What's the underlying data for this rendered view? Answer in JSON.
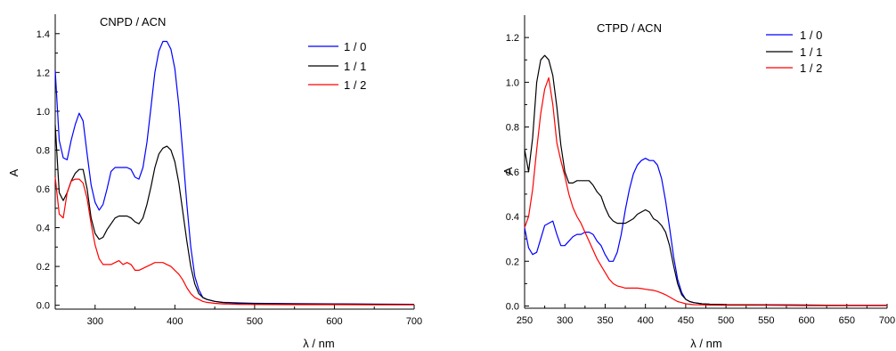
{
  "chart_data": [
    {
      "type": "line",
      "title": "CNPD / ACN",
      "xlabel": "λ / nm",
      "ylabel": "A",
      "xlim": [
        250,
        700
      ],
      "ylim": [
        -0.02,
        1.5
      ],
      "xticks": [
        300,
        400,
        500,
        600,
        700
      ],
      "xtick_labels": [
        "300",
        "400",
        "500",
        "600",
        "700"
      ],
      "yticks": [
        0.0,
        0.2,
        0.4,
        0.6,
        0.8,
        1.0,
        1.2,
        1.4
      ],
      "ytick_labels": [
        "0.0",
        "0.2",
        "0.4",
        "0.6",
        "0.8",
        "1.0",
        "1.2",
        "1.4"
      ],
      "grid": false,
      "legend": "top-right",
      "series": [
        {
          "name": "1 / 0",
          "color": "#0000ff",
          "x": [
            250,
            255,
            260,
            265,
            270,
            275,
            280,
            285,
            290,
            295,
            300,
            305,
            310,
            315,
            320,
            325,
            330,
            335,
            340,
            345,
            350,
            355,
            360,
            365,
            370,
            375,
            380,
            385,
            390,
            395,
            400,
            405,
            410,
            415,
            420,
            425,
            430,
            435,
            440,
            450,
            460,
            480,
            500,
            550,
            600,
            650,
            700
          ],
          "y": [
            1.21,
            0.85,
            0.76,
            0.75,
            0.85,
            0.93,
            0.99,
            0.95,
            0.78,
            0.62,
            0.53,
            0.49,
            0.52,
            0.6,
            0.69,
            0.71,
            0.71,
            0.71,
            0.71,
            0.7,
            0.66,
            0.65,
            0.71,
            0.84,
            1.02,
            1.2,
            1.31,
            1.36,
            1.36,
            1.32,
            1.22,
            1.03,
            0.78,
            0.52,
            0.3,
            0.15,
            0.08,
            0.04,
            0.03,
            0.02,
            0.015,
            0.012,
            0.01,
            0.008,
            0.007,
            0.006,
            0.005
          ]
        },
        {
          "name": "1 / 1",
          "color": "#000000",
          "x": [
            250,
            255,
            260,
            265,
            270,
            275,
            280,
            285,
            290,
            295,
            300,
            305,
            310,
            315,
            320,
            325,
            330,
            335,
            340,
            345,
            350,
            355,
            360,
            365,
            370,
            375,
            380,
            385,
            390,
            395,
            400,
            405,
            410,
            415,
            420,
            425,
            430,
            435,
            440,
            450,
            460,
            480,
            500,
            550,
            600,
            650,
            700
          ],
          "y": [
            0.93,
            0.58,
            0.54,
            0.58,
            0.64,
            0.68,
            0.7,
            0.7,
            0.6,
            0.45,
            0.37,
            0.34,
            0.35,
            0.39,
            0.42,
            0.45,
            0.46,
            0.46,
            0.46,
            0.45,
            0.43,
            0.42,
            0.45,
            0.52,
            0.61,
            0.71,
            0.78,
            0.81,
            0.82,
            0.8,
            0.74,
            0.63,
            0.48,
            0.33,
            0.2,
            0.11,
            0.06,
            0.04,
            0.03,
            0.02,
            0.014,
            0.01,
            0.008,
            0.007,
            0.006,
            0.005,
            0.004
          ]
        },
        {
          "name": "1 / 2",
          "color": "#ff0000",
          "x": [
            250,
            255,
            260,
            265,
            270,
            275,
            280,
            285,
            290,
            295,
            300,
            305,
            310,
            315,
            320,
            325,
            330,
            335,
            340,
            345,
            350,
            355,
            360,
            365,
            370,
            375,
            380,
            385,
            390,
            395,
            400,
            405,
            410,
            415,
            420,
            425,
            430,
            435,
            440,
            450,
            460,
            480,
            500,
            550,
            600,
            650,
            700
          ],
          "y": [
            0.66,
            0.47,
            0.45,
            0.58,
            0.64,
            0.65,
            0.65,
            0.63,
            0.55,
            0.42,
            0.31,
            0.24,
            0.21,
            0.21,
            0.21,
            0.22,
            0.23,
            0.21,
            0.22,
            0.21,
            0.18,
            0.18,
            0.19,
            0.2,
            0.21,
            0.22,
            0.22,
            0.22,
            0.21,
            0.2,
            0.18,
            0.16,
            0.13,
            0.09,
            0.06,
            0.04,
            0.03,
            0.02,
            0.015,
            0.01,
            0.007,
            0.005,
            0.004,
            0.003,
            0.003,
            0.002,
            0.002
          ]
        }
      ]
    },
    {
      "type": "line",
      "title": "CTPD / ACN",
      "xlabel": "λ / nm",
      "ylabel": "A",
      "xlim": [
        250,
        700
      ],
      "ylim": [
        -0.01,
        1.3
      ],
      "xticks": [
        250,
        300,
        350,
        400,
        450,
        500,
        550,
        600,
        650,
        700
      ],
      "xtick_labels": [
        "250",
        "300",
        "350",
        "400",
        "450",
        "500",
        "550",
        "600",
        "650",
        "700"
      ],
      "yticks": [
        0.0,
        0.2,
        0.4,
        0.6,
        0.8,
        1.0,
        1.2
      ],
      "ytick_labels": [
        "0.0",
        "0.2",
        "0.4",
        "0.6",
        "0.8",
        "1.0",
        "1.2"
      ],
      "grid": false,
      "legend": "top-right",
      "series": [
        {
          "name": "1 / 0",
          "color": "#0000ff",
          "x": [
            250,
            255,
            260,
            265,
            270,
            275,
            280,
            285,
            290,
            295,
            300,
            305,
            310,
            315,
            320,
            325,
            330,
            335,
            340,
            345,
            350,
            355,
            360,
            365,
            370,
            375,
            380,
            385,
            390,
            395,
            400,
            405,
            410,
            415,
            420,
            425,
            430,
            435,
            440,
            445,
            450,
            455,
            460,
            470,
            480,
            500,
            550,
            600,
            650,
            700
          ],
          "y": [
            0.35,
            0.26,
            0.23,
            0.24,
            0.3,
            0.36,
            0.37,
            0.38,
            0.32,
            0.27,
            0.27,
            0.29,
            0.31,
            0.32,
            0.32,
            0.33,
            0.33,
            0.32,
            0.29,
            0.27,
            0.23,
            0.2,
            0.2,
            0.24,
            0.32,
            0.43,
            0.52,
            0.59,
            0.63,
            0.65,
            0.66,
            0.65,
            0.65,
            0.63,
            0.57,
            0.47,
            0.35,
            0.22,
            0.12,
            0.06,
            0.03,
            0.02,
            0.015,
            0.01,
            0.008,
            0.006,
            0.005,
            0.004,
            0.003,
            0.003
          ]
        },
        {
          "name": "1 / 1",
          "color": "#000000",
          "x": [
            250,
            255,
            260,
            265,
            270,
            275,
            280,
            285,
            290,
            295,
            300,
            305,
            310,
            315,
            320,
            325,
            330,
            335,
            340,
            345,
            350,
            355,
            360,
            365,
            370,
            375,
            380,
            385,
            390,
            395,
            400,
            405,
            410,
            415,
            420,
            425,
            430,
            435,
            440,
            445,
            450,
            455,
            460,
            470,
            480,
            500,
            550,
            600,
            650,
            700
          ],
          "y": [
            0.7,
            0.6,
            0.75,
            1.0,
            1.1,
            1.12,
            1.1,
            1.03,
            0.89,
            0.72,
            0.6,
            0.55,
            0.55,
            0.56,
            0.56,
            0.56,
            0.56,
            0.54,
            0.51,
            0.49,
            0.44,
            0.4,
            0.38,
            0.37,
            0.37,
            0.37,
            0.38,
            0.39,
            0.41,
            0.42,
            0.43,
            0.42,
            0.39,
            0.38,
            0.36,
            0.33,
            0.27,
            0.18,
            0.1,
            0.05,
            0.03,
            0.02,
            0.015,
            0.01,
            0.008,
            0.006,
            0.005,
            0.004,
            0.003,
            0.003
          ]
        },
        {
          "name": "1 / 2",
          "color": "#ff0000",
          "x": [
            250,
            255,
            260,
            265,
            270,
            275,
            280,
            285,
            290,
            295,
            300,
            305,
            310,
            315,
            320,
            325,
            330,
            335,
            340,
            345,
            350,
            355,
            360,
            365,
            370,
            375,
            380,
            385,
            390,
            395,
            400,
            405,
            410,
            415,
            420,
            425,
            430,
            435,
            440,
            445,
            450,
            455,
            460,
            470,
            480,
            500,
            550,
            600,
            650,
            700
          ],
          "y": [
            0.35,
            0.4,
            0.52,
            0.7,
            0.86,
            0.97,
            1.02,
            0.9,
            0.73,
            0.65,
            0.58,
            0.5,
            0.44,
            0.4,
            0.37,
            0.33,
            0.29,
            0.25,
            0.21,
            0.18,
            0.15,
            0.12,
            0.1,
            0.09,
            0.085,
            0.08,
            0.08,
            0.08,
            0.08,
            0.078,
            0.075,
            0.072,
            0.07,
            0.065,
            0.058,
            0.05,
            0.04,
            0.03,
            0.02,
            0.015,
            0.01,
            0.008,
            0.006,
            0.005,
            0.004,
            0.003,
            0.003,
            0.002,
            0.002,
            0.002
          ]
        }
      ]
    }
  ]
}
